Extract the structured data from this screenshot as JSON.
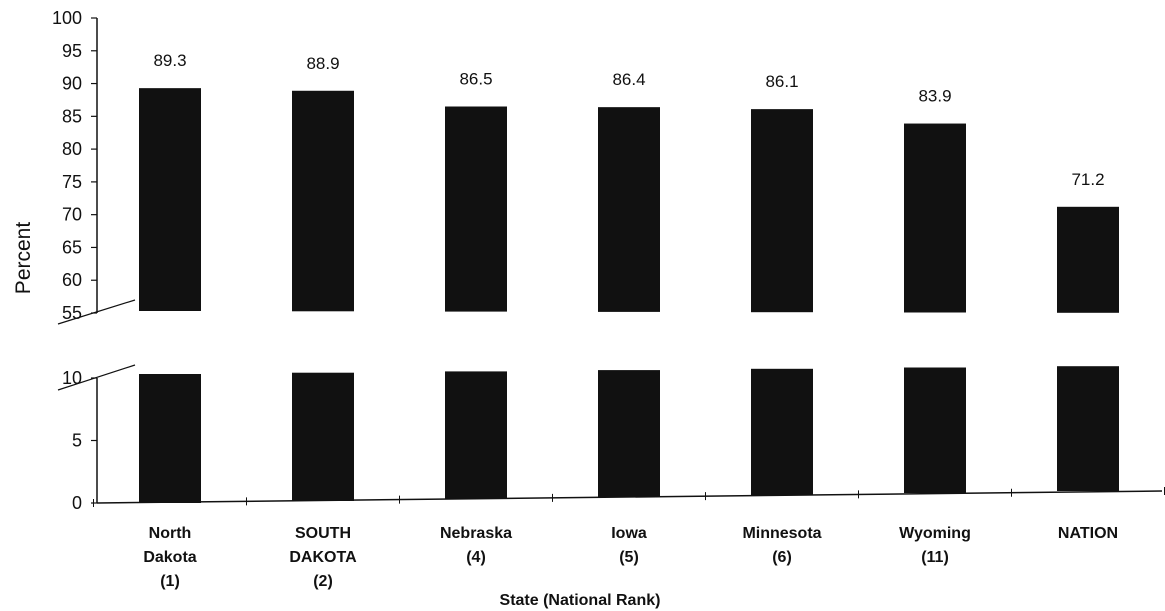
{
  "chart_data": {
    "type": "bar",
    "title": "",
    "ylabel": "Percent",
    "xlabel": "State (National Rank)",
    "categories": [
      [
        "North",
        "Dakota",
        "(1)"
      ],
      [
        "SOUTH",
        "DAKOTA",
        "(2)"
      ],
      [
        "Nebraska",
        "(4)"
      ],
      [
        "Iowa",
        "(5)"
      ],
      [
        "Minnesota",
        "(6)"
      ],
      [
        "Wyoming",
        "(11)"
      ],
      [
        "NATION"
      ]
    ],
    "values": [
      89.3,
      88.9,
      86.5,
      86.4,
      86.1,
      83.9,
      71.2
    ],
    "value_labels": [
      "89.3",
      "88.9",
      "86.5",
      "86.4",
      "86.1",
      "83.9",
      "71.2"
    ],
    "y_ticks_upper": [
      "55",
      "60",
      "65",
      "70",
      "75",
      "80",
      "85",
      "90",
      "95",
      "100"
    ],
    "y_ticks_lower": [
      "0",
      "5",
      "10"
    ],
    "ylim_upper": [
      55,
      100
    ],
    "ylim_lower": [
      0,
      10
    ],
    "axis_break": true,
    "grid": false,
    "bar_color": "#111111"
  }
}
